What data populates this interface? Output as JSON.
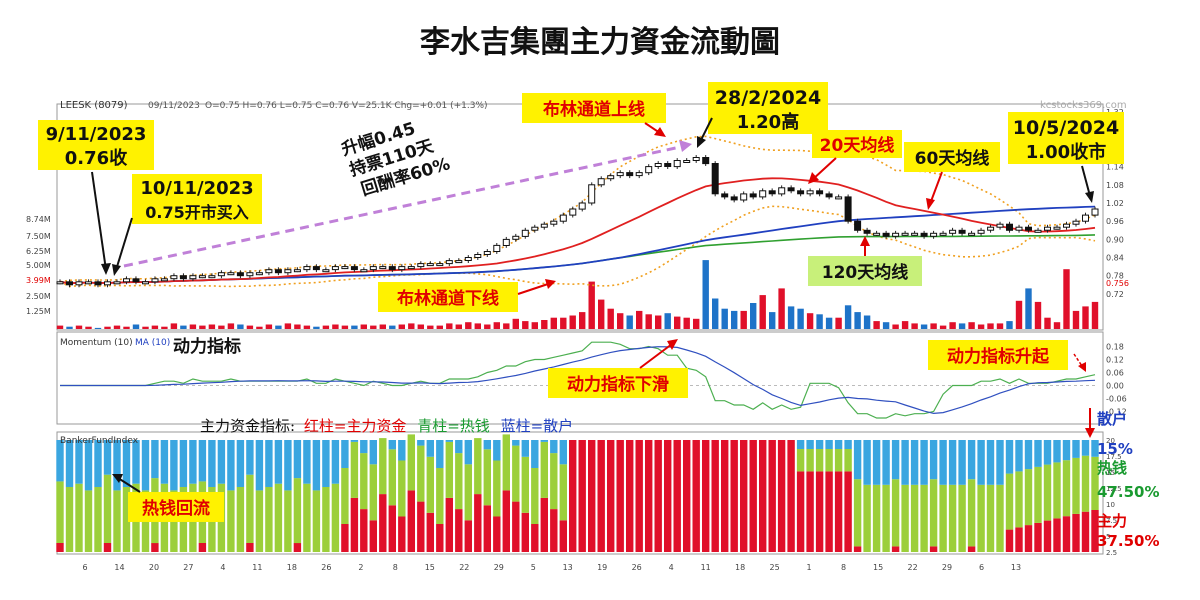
{
  "title": "李水吉集團主力資金流動圖",
  "header": {
    "ticker": "LEESK (8079)",
    "date": "09/11/2023",
    "ohlc": "O=0.75  H=0.76  L=0.75  C=0.76  V=25.1K Chg=+0.01 (+1.3%)",
    "watermark": "kcstocks369.com"
  },
  "annotations": {
    "a1_date": "9/11/2023",
    "a1_text": "0.76收",
    "a2_date": "10/11/2023",
    "a2_text": "0.75开市买入",
    "a3_date": "28/2/2024",
    "a3_text": "1.20高",
    "a4_date": "10/5/2024",
    "a4_text": "1.00收市",
    "rise_1": "升幅0.45",
    "rise_2": "持票110天",
    "rise_3": "回酬率60%",
    "boll_upper": "布林通道上线",
    "boll_lower": "布林通道下线",
    "ma20": "20天均线",
    "ma60": "60天均线",
    "ma120": "120天均线",
    "momentum_title": "动力指标",
    "momentum_down": "动力指标下滑",
    "momentum_up": "动力指标升起",
    "hot_money_back": "热钱回流",
    "legend_prefix": "主力资金指标:",
    "legend_red": "红柱=主力资金",
    "legend_green": "青柱=热钱",
    "legend_blue": "蓝柱=散户",
    "retail_label": "散户",
    "retail_pct": "15%",
    "hot_label": "热钱",
    "hot_pct": "47.50%",
    "main_label": "主力",
    "main_pct": "37.50%"
  },
  "panels": {
    "momentum_label": "Momentum (10)",
    "momentum_ma": "MA (10)",
    "fund_label": "BankerFundIndex"
  },
  "axes": {
    "price_ticks": [
      "1.32",
      "1.26",
      "1.20",
      "1.14",
      "1.08",
      "1.02",
      "0.96",
      "0.90",
      "0.84",
      "0.78",
      "0.72"
    ],
    "price_marker": "0.756",
    "volume_ticks": [
      "8.74M",
      "7.50M",
      "6.25M",
      "5.00M",
      "3.99M",
      "2.50M",
      "1.25M"
    ],
    "momentum_ticks": [
      "0.18",
      "0.12",
      "0.06",
      "0.00",
      "-0.06",
      "-0.12"
    ],
    "fund_ticks": [
      "20",
      "17.5",
      "15",
      "12.5",
      "10",
      "7.5",
      "5",
      "2.5"
    ],
    "date_ticks": [
      "6",
      "14",
      "20",
      "27",
      "4",
      "11",
      "18",
      "26",
      "2",
      "8",
      "15",
      "22",
      "29",
      "5",
      "13",
      "19",
      "26",
      "4",
      "11",
      "18",
      "25",
      "1",
      "8",
      "15",
      "22",
      "29",
      "6",
      "13"
    ]
  },
  "colors": {
    "ma20": "#e02020",
    "ma60": "#2040c0",
    "ma120": "#30a030",
    "bollinger": "#f0a020",
    "main": "#e0102a",
    "hot": "#9ccf3a",
    "retail": "#3aa6e0",
    "volume_up": "#e0102a",
    "volume_down": "#1e73c8"
  },
  "chart_data": {
    "type": "line",
    "title": "李水吉集團主力資金流動圖",
    "series_note": "daily close price LEESK (8079), Nov 2023 – May 2024",
    "closes": [
      0.76,
      0.75,
      0.76,
      0.76,
      0.75,
      0.76,
      0.76,
      0.77,
      0.76,
      0.76,
      0.77,
      0.77,
      0.78,
      0.77,
      0.78,
      0.78,
      0.78,
      0.79,
      0.79,
      0.78,
      0.79,
      0.79,
      0.8,
      0.79,
      0.8,
      0.8,
      0.81,
      0.8,
      0.8,
      0.81,
      0.81,
      0.8,
      0.8,
      0.81,
      0.81,
      0.8,
      0.81,
      0.81,
      0.82,
      0.82,
      0.82,
      0.83,
      0.83,
      0.84,
      0.85,
      0.86,
      0.88,
      0.9,
      0.91,
      0.93,
      0.94,
      0.95,
      0.96,
      0.98,
      1.0,
      1.02,
      1.08,
      1.1,
      1.11,
      1.12,
      1.11,
      1.12,
      1.14,
      1.15,
      1.14,
      1.16,
      1.16,
      1.17,
      1.15,
      1.05,
      1.04,
      1.03,
      1.05,
      1.04,
      1.06,
      1.05,
      1.07,
      1.06,
      1.05,
      1.06,
      1.05,
      1.04,
      1.04,
      0.96,
      0.93,
      0.92,
      0.92,
      0.91,
      0.92,
      0.92,
      0.92,
      0.91,
      0.92,
      0.92,
      0.93,
      0.92,
      0.92,
      0.93,
      0.94,
      0.95,
      0.93,
      0.94,
      0.93,
      0.93,
      0.94,
      0.94,
      0.95,
      0.96,
      0.98,
      1.0
    ],
    "annotated_points": [
      {
        "date": "9/11/2023",
        "value": 0.76,
        "label": "0.76收"
      },
      {
        "date": "10/11/2023",
        "value": 0.75,
        "label": "0.75开市买入"
      },
      {
        "date": "28/2/2024",
        "value": 1.2,
        "label": "1.20高"
      },
      {
        "date": "10/5/2024",
        "value": 1.0,
        "label": "1.00收市"
      }
    ],
    "ylim": [
      0.7,
      1.32
    ],
    "volume": [
      0.3,
      0.2,
      0.3,
      0.2,
      0.1,
      0.2,
      0.3,
      0.2,
      0.4,
      0.2,
      0.3,
      0.2,
      0.5,
      0.3,
      0.4,
      0.3,
      0.4,
      0.3,
      0.5,
      0.4,
      0.3,
      0.2,
      0.4,
      0.3,
      0.5,
      0.4,
      0.3,
      0.2,
      0.3,
      0.4,
      0.3,
      0.3,
      0.4,
      0.3,
      0.4,
      0.3,
      0.4,
      0.5,
      0.4,
      0.3,
      0.3,
      0.5,
      0.4,
      0.6,
      0.5,
      0.4,
      0.6,
      0.5,
      0.9,
      0.7,
      0.6,
      0.8,
      1.0,
      1.0,
      1.2,
      1.5,
      4.2,
      2.6,
      1.8,
      1.4,
      1.2,
      1.6,
      1.3,
      1.2,
      1.4,
      1.1,
      1.0,
      0.9,
      6.1,
      2.7,
      1.8,
      1.6,
      1.6,
      2.3,
      3.0,
      1.5,
      3.6,
      2.0,
      1.8,
      1.4,
      1.3,
      1.0,
      1.0,
      2.1,
      1.5,
      1.2,
      0.7,
      0.6,
      0.4,
      0.7,
      0.5,
      0.4,
      0.5,
      0.3,
      0.6,
      0.5,
      0.6,
      0.4,
      0.5,
      0.5,
      0.7,
      2.5,
      3.6,
      2.4,
      1.0,
      0.6,
      5.3,
      1.6,
      2.0,
      2.4
    ],
    "fund_index_final": {
      "retail_pct": 15,
      "hot_pct": 47.5,
      "main_pct": 37.5
    }
  }
}
